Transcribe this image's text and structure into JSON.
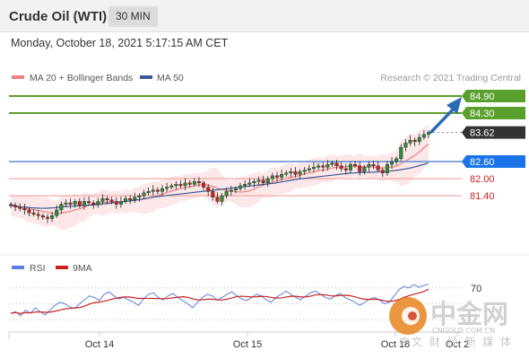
{
  "header": {
    "title": "Crude Oil (WTI)",
    "timeframe": "30 MIN"
  },
  "datetime": "Monday, October 18, 2021 5:17:15 AM CET",
  "credit": "Research © 2021 Trading Central",
  "legend": {
    "bollinger_label": "MA 20 + Bollinger Bands",
    "bollinger_color": "#f08080",
    "ma50_label": "MA 50",
    "ma50_color": "#3a5a9a"
  },
  "rsi_legend": {
    "rsi_label": "RSI",
    "rsi_color": "#5b7fd9",
    "ma_label": "9MA",
    "ma_color": "#cc2222"
  },
  "colors": {
    "resistance": "#5aa02c",
    "pivot": "#5b8bd4",
    "support": "#f0a0a0",
    "current_tag": "#333333",
    "pivot_tag": "#1a73e8",
    "arrow": "#2a6bb5",
    "candle_up": "#2e8b3a",
    "candle_down": "#cc2222"
  },
  "watermark": {
    "brand": "中金网",
    "domain": "CNGOLD.COM.CN",
    "slogan": "中文 财 经 新 媒 体"
  },
  "chart_data": {
    "type": "candlestick",
    "instrument": "Crude Oil (WTI)",
    "interval": "30 MIN",
    "ylim": [
      80.6,
      85.3
    ],
    "x_tick_labels": [
      "Oct 14",
      "Oct 15",
      "Oct 18",
      "Oct 2"
    ],
    "levels": [
      {
        "value": 84.9,
        "label": "84.90",
        "kind": "resistance"
      },
      {
        "value": 84.3,
        "label": "84.30",
        "kind": "resistance"
      },
      {
        "value": 83.62,
        "label": "83.62",
        "kind": "current"
      },
      {
        "value": 82.6,
        "label": "82.60",
        "kind": "pivot"
      },
      {
        "value": 82.0,
        "label": "82.00",
        "kind": "support"
      },
      {
        "value": 81.4,
        "label": "81.40",
        "kind": "support"
      }
    ],
    "closes": [
      81.05,
      81.0,
      80.95,
      80.9,
      80.8,
      80.75,
      80.7,
      80.65,
      80.6,
      80.7,
      80.9,
      81.1,
      81.15,
      81.1,
      81.2,
      81.05,
      81.2,
      81.15,
      81.1,
      81.2,
      81.3,
      81.25,
      81.2,
      81.1,
      81.2,
      81.3,
      81.25,
      81.35,
      81.4,
      81.5,
      81.55,
      81.6,
      81.55,
      81.65,
      81.7,
      81.75,
      81.8,
      81.75,
      81.85,
      81.8,
      81.9,
      81.85,
      81.7,
      81.55,
      81.35,
      81.2,
      81.4,
      81.55,
      81.6,
      81.65,
      81.75,
      81.8,
      81.85,
      81.9,
      81.95,
      81.85,
      82.0,
      82.1,
      82.05,
      82.15,
      82.2,
      82.25,
      82.15,
      82.25,
      82.3,
      82.35,
      82.4,
      82.45,
      82.4,
      82.5,
      82.55,
      82.45,
      82.35,
      82.3,
      82.5,
      82.45,
      82.25,
      82.4,
      82.5,
      82.45,
      82.3,
      82.2,
      82.5,
      82.6,
      82.7,
      83.1,
      83.25,
      83.35,
      83.3,
      83.45,
      83.55,
      83.62
    ],
    "ma50": [
      81.1,
      81.05,
      81.0,
      81.0,
      80.98,
      80.97,
      80.96,
      80.96,
      80.97,
      80.98,
      81.0,
      81.02,
      81.03,
      81.04,
      81.05,
      81.06,
      81.07,
      81.08,
      81.1,
      81.12,
      81.14,
      81.16,
      81.18,
      81.2,
      81.22,
      81.24,
      81.27,
      81.3,
      81.33,
      81.36,
      81.38,
      81.4,
      81.42,
      81.44,
      81.46,
      81.48,
      81.5,
      81.52,
      81.54,
      81.56,
      81.58,
      81.6,
      81.62,
      81.64,
      81.66,
      81.68,
      81.7,
      81.72,
      81.74,
      81.76,
      81.78,
      81.8,
      81.82,
      81.84,
      81.87,
      81.9,
      81.93,
      81.96,
      81.99,
      82.01,
      82.03,
      82.05,
      82.07,
      82.09,
      82.11,
      82.13,
      82.15,
      82.17,
      82.19,
      82.2,
      82.21,
      82.22,
      82.22,
      82.23,
      82.24,
      82.25,
      82.26,
      82.28,
      82.3,
      82.33,
      82.36,
      82.4,
      82.45,
      82.5,
      82.55
    ],
    "bollinger_bands": {
      "mid_from": 81.05,
      "mid_to": 83.0,
      "width": 0.35
    },
    "rsi_level_label": "70",
    "rsi": [
      38,
      40,
      35,
      42,
      38,
      45,
      40,
      36,
      42,
      48,
      52,
      50,
      46,
      44,
      50,
      55,
      60,
      58,
      54,
      62,
      65,
      60,
      56,
      58,
      55,
      52,
      48,
      56,
      62,
      64,
      58,
      55,
      60,
      63,
      58,
      54,
      50,
      45,
      52,
      58,
      62,
      60,
      55,
      58,
      62,
      65,
      60,
      56,
      54,
      58,
      62,
      60,
      55,
      52,
      58,
      62,
      66,
      62,
      58,
      55,
      60,
      64,
      66,
      62,
      58,
      56,
      60,
      63,
      58,
      55,
      52,
      48,
      52,
      56,
      58,
      55,
      50,
      52,
      60,
      68,
      72,
      70,
      74,
      71,
      73,
      75
    ]
  }
}
